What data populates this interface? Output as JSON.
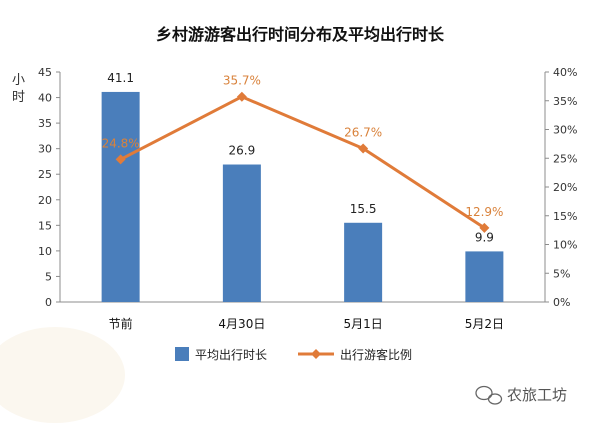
{
  "chart_data": {
    "type": "bar",
    "title": "乡村游游客出行时间分布及平均出行时长",
    "ylabel": "小时",
    "categories": [
      "节前",
      "4月30日",
      "5月1日",
      "5月2日"
    ],
    "y_left": {
      "ylim": [
        0,
        45
      ],
      "ticks": [
        "0",
        "5",
        "10",
        "15",
        "20",
        "25",
        "30",
        "35",
        "40",
        "45"
      ]
    },
    "y_right": {
      "ylim": [
        0,
        40
      ],
      "ticks": [
        "0%",
        "5%",
        "10%",
        "15%",
        "20%",
        "25%",
        "30%",
        "35%",
        "40%"
      ]
    },
    "series": [
      {
        "name": "平均出行时长",
        "type": "bar",
        "axis": "left",
        "color": "#4a7ebb",
        "values": [
          41.1,
          26.9,
          15.5,
          9.9
        ],
        "labels": [
          "41.1",
          "26.9",
          "15.5",
          "9.9"
        ]
      },
      {
        "name": "出行游客比例",
        "type": "line",
        "axis": "right",
        "color": "#e07b39",
        "values": [
          24.8,
          35.7,
          26.7,
          12.9
        ],
        "labels": [
          "24.8%",
          "35.7%",
          "26.7%",
          "12.9%"
        ]
      }
    ],
    "grid": false,
    "legend": "bottom"
  },
  "watermark": {
    "text": "农旅工坊",
    "icon": "wechat-bubble-icon"
  }
}
